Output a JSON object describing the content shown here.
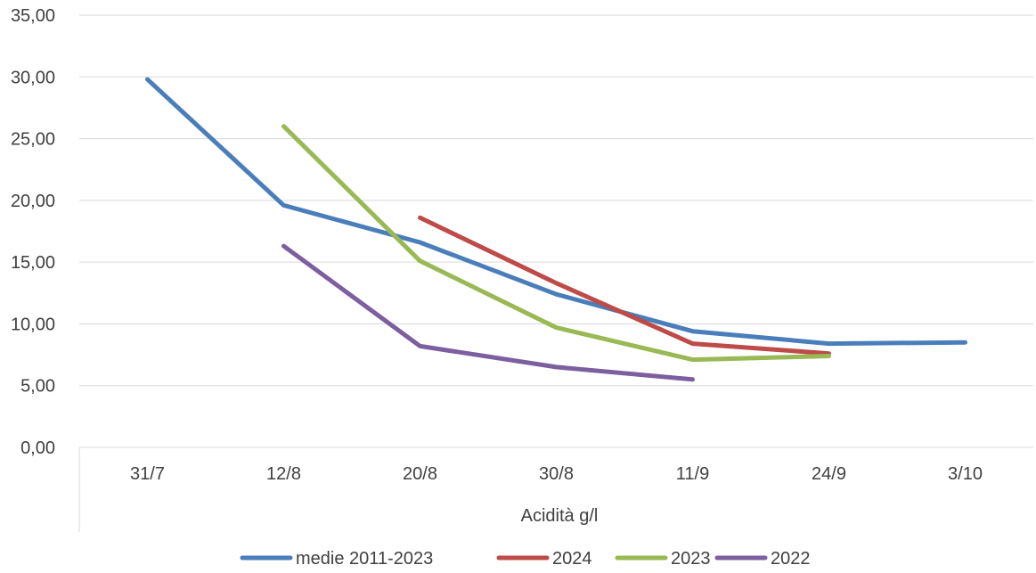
{
  "chart_data": {
    "type": "line",
    "title": "",
    "xlabel": "Acidità g/l",
    "ylabel": "",
    "categories": [
      "31/7",
      "12/8",
      "20/8",
      "30/8",
      "11/9",
      "24/9",
      "3/10"
    ],
    "y_tick_labels": [
      "0,00",
      "5,00",
      "10,00",
      "15,00",
      "20,00",
      "25,00",
      "30,00",
      "35,00"
    ],
    "ylim": [
      0,
      35
    ],
    "y_step": 5,
    "grid": "horizontal",
    "legend_position": "bottom",
    "series": [
      {
        "name": "medie 2011-2023",
        "color": "#4a7ebb",
        "values": [
          29.8,
          19.6,
          16.6,
          12.4,
          9.4,
          8.4,
          8.5
        ]
      },
      {
        "name": "2024",
        "color": "#be4b48",
        "values": [
          null,
          null,
          18.6,
          13.3,
          8.4,
          7.6,
          null
        ]
      },
      {
        "name": "2023",
        "color": "#98b954",
        "values": [
          null,
          26.0,
          15.1,
          9.7,
          7.1,
          7.4,
          null
        ]
      },
      {
        "name": "2022",
        "color": "#7d5fa0",
        "values": [
          null,
          16.3,
          8.2,
          6.5,
          5.5,
          null,
          null
        ]
      }
    ]
  }
}
